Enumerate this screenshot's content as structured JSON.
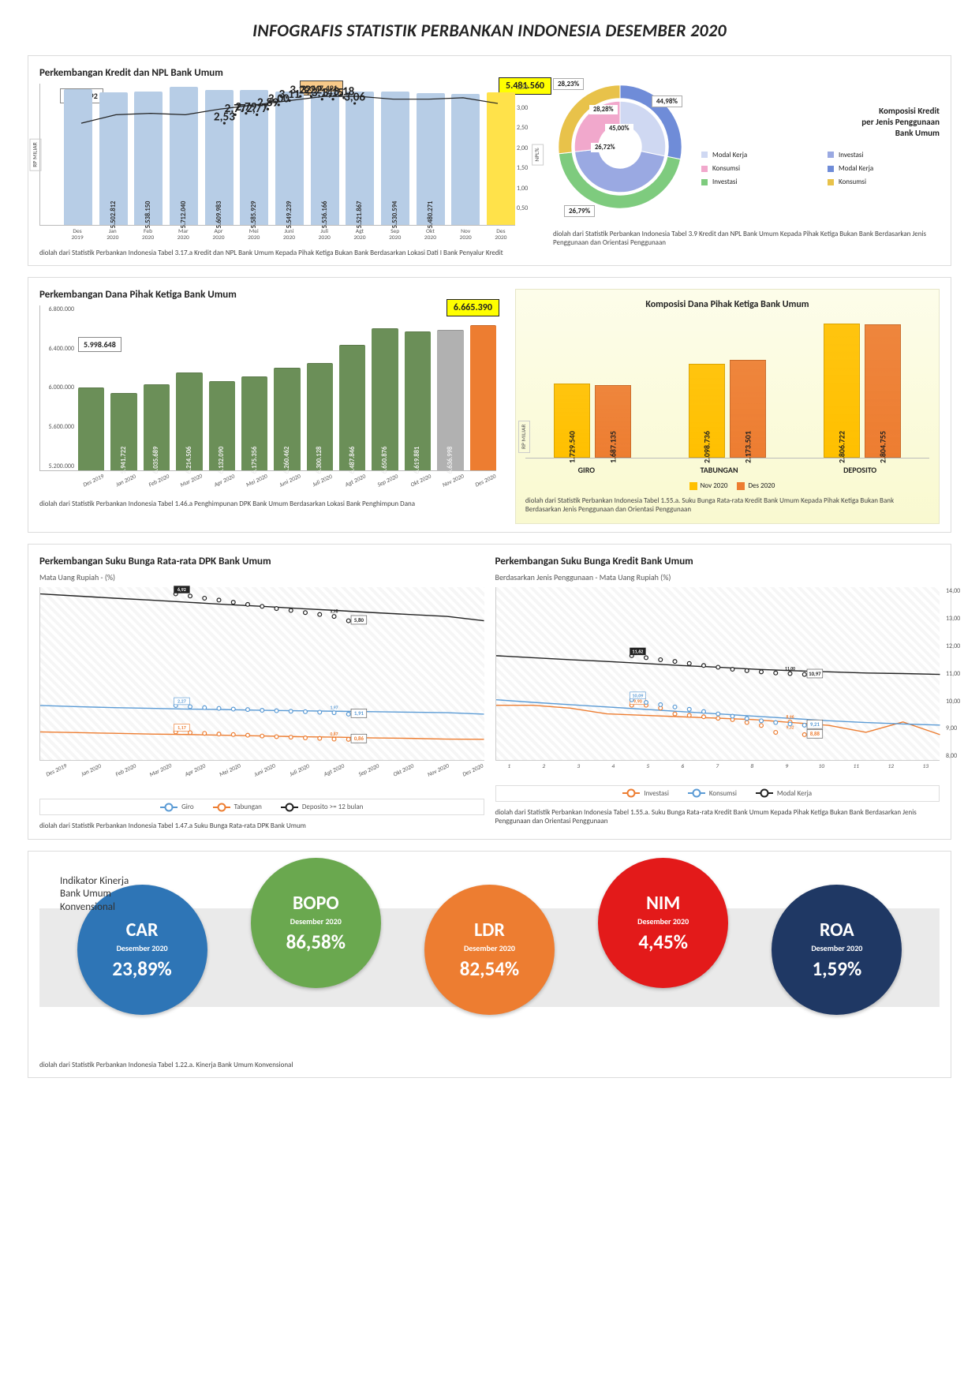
{
  "page_title": "INFOGRAFIS STATISTIK PERBANKAN INDONESIA DESEMBER 2020",
  "credit_npl": {
    "title": "Perkembangan Kredit dan NPL Bank Umum",
    "footnote": "diolah dari Statistik Perbankan Indonesia Tabel 3.17.a Kredit dan NPL Bank Umum Kepada Pihak Ketiga Bukan Bank Berdasarkan Lokasi Dati I Bank Penyalur Kredit",
    "y_unit_left": "RP MILIAR",
    "y_unit_right": "NPL%",
    "first_box": "5.616.992",
    "last_box": "5.481.560",
    "peak_box": "5.447.491",
    "bars": {
      "labels": [
        "Des 2019",
        "Jan 2020",
        "Feb 2020",
        "Mar 2020",
        "Apr 2020",
        "Mei 2020",
        "Juni 2020",
        "Juli 2020",
        "Agt 2020",
        "Sep 2020",
        "Okt 2020",
        "Nov 2020",
        "Des 2020"
      ],
      "values": [
        "",
        "5.502.812",
        "5.538.150",
        "5.712.040",
        "5.609.983",
        "5.585.929",
        "5.549.239",
        "5.536.166",
        "5.521.867",
        "5.530.594",
        "5.480.271",
        "",
        ""
      ],
      "heights_pct": [
        96,
        94,
        94.5,
        97.5,
        95.7,
        95.3,
        94.7,
        94.5,
        94.3,
        94.4,
        93.5,
        93,
        93.6
      ],
      "colors": [
        "#b7cde6",
        "#b7cde6",
        "#b7cde6",
        "#b7cde6",
        "#b7cde6",
        "#b7cde6",
        "#b7cde6",
        "#b7cde6",
        "#b7cde6",
        "#b7cde6",
        "#b7cde6",
        "#b7cde6",
        "#ffe24a"
      ]
    },
    "line_points": [
      "2,53",
      "2,77",
      "2,79",
      "2,77",
      "2,89",
      "3,00",
      "3,11",
      "3,22",
      "3,22",
      "3,14",
      "3,15",
      "3,18",
      "3,06"
    ],
    "line_heights_pct": [
      28,
      22,
      21,
      22,
      18,
      15,
      12,
      9,
      9,
      11,
      11,
      10,
      14
    ],
    "right_ticks": [
      "",
      "0,50",
      "1,00",
      "1,50",
      "2,00",
      "2,50",
      "3,00",
      "3,50"
    ]
  },
  "credit_comp": {
    "title": "Komposisi Kredit\nper Jenis Penggunaan\nBank Umum",
    "footnote": "diolah dari Statistik Perbankan Indonesia Tabel 3.9 Kredit dan NPL Bank Umum Kepada Pihak Ketiga Bukan Bank Berdasarkan Jenis Penggunaan dan Orientasi Penggunaan",
    "inner": [
      {
        "label": "28,28%",
        "color": "#cfd8f2"
      },
      {
        "label": "45,00%",
        "color": "#9aa9e2"
      },
      {
        "label": "26,72%",
        "color": "#f1a8cc"
      }
    ],
    "outer": [
      {
        "label": "28,23%",
        "color": "#6f8cd8"
      },
      {
        "label": "44,98%",
        "color": "#7ecb7e"
      },
      {
        "label": "26,79%",
        "color": "#e8c24a"
      }
    ],
    "legend": [
      "Modal Kerja",
      "Investasi",
      "Konsumsi",
      "Modal Kerja",
      "Investasi",
      "Konsumsi"
    ]
  },
  "dpk": {
    "title": "Perkembangan Dana Pihak Ketiga Bank Umum",
    "footnote": "diolah dari Statistik Perbankan Indonesia Tabel 1.46.a Penghimpunan DPK Bank Umum Berdasarkan Lokasi Bank Penghimpun Dana",
    "first_box": "5.998.648",
    "last_box": "6.665.390",
    "y_ticks": [
      "5.200.000",
      "5.600.000",
      "6.000.000",
      "6.400.000",
      "6.800.000"
    ],
    "bars": {
      "labels": [
        "Des 2019",
        "Jan 2020",
        "Feb 2020",
        "Mar 2020",
        "Apr 2020",
        "Mei 2020",
        "Juni 2020",
        "Juli 2020",
        "Agt 2020",
        "Sep 2020",
        "Okt 2020",
        "Nov 2020",
        "Des 2020"
      ],
      "values": [
        "",
        "5.941.722",
        "6.035.689",
        "6.214.506",
        "6.132.090",
        "6.175.356",
        "6.260.462",
        "6.300.128",
        "6.487.846",
        "6.650.876",
        "6.619.881",
        "6.636.998",
        ""
      ],
      "heights_pct": [
        50,
        47,
        52,
        59,
        54,
        57,
        62,
        65,
        76,
        86,
        84,
        85,
        88
      ],
      "colors": [
        "#6b8f58",
        "#6b8f58",
        "#6b8f58",
        "#6b8f58",
        "#6b8f58",
        "#6b8f58",
        "#6b8f58",
        "#6b8f58",
        "#6b8f58",
        "#6b8f58",
        "#6b8f58",
        "#b1b1b1",
        "#ed7d31"
      ]
    }
  },
  "dpk_comp": {
    "title": "Komposisi Dana Pihak Ketiga Bank Umum",
    "footnote": "diolah dari Statistik Perbankan Indonesia Tabel 1.55.a. Suku Bunga Rata-rata Kredit Bank Umum Kepada Pihak Ketiga Bukan Bank Berdasarkan Jenis Penggunaan dan Orientasi Penggunaan",
    "y_unit": "RP MILIAR",
    "categories": [
      "GIRO",
      "TABUNGAN",
      "DEPOSITO"
    ],
    "series": [
      {
        "name": "Nov 2020",
        "color": "#ffc000",
        "values": [
          "1.729.540",
          "2.098.736",
          "2.806.722"
        ],
        "heights": [
          55,
          70,
          100
        ]
      },
      {
        "name": "Des 2020",
        "color": "#ed7d31",
        "values": [
          "1.687.135",
          "2.173.501",
          "2.804.755"
        ],
        "heights": [
          54,
          73,
          99.5
        ]
      }
    ]
  },
  "dpk_rate": {
    "title": "Perkembangan Suku Bunga Rata-rata DPK Bank Umum",
    "sub": "Mata Uang Rupiah - (%)",
    "footnote": "diolah dari Statistik Perbankan Indonesia Tabel 1.47.a Suku Bunga Rata-rata DPK Bank Umum",
    "x_labels": [
      "Des 2019",
      "Jan 2020",
      "Feb 2020",
      "Mar 2020",
      "Apr 2020",
      "Mei 2020",
      "Juni 2020",
      "Juli 2020",
      "Agt 2020",
      "Sep 2020",
      "Okt 2020",
      "Nov 2020",
      "Des 2020"
    ],
    "series": [
      {
        "name": "Giro",
        "color": "#5b9bd5",
        "first": "2,27",
        "prev": "1,97",
        "last": "1,91",
        "y": [
          2.27,
          2.22,
          2.18,
          2.15,
          2.12,
          2.1,
          2.07,
          2.05,
          2.03,
          2.01,
          1.99,
          1.97,
          1.91
        ]
      },
      {
        "name": "Tabungan",
        "color": "#ed7d31",
        "first": "1,17",
        "prev": "0,87",
        "last": "0,86",
        "y": [
          1.17,
          1.14,
          1.11,
          1.08,
          1.06,
          1.03,
          1.0,
          0.97,
          0.95,
          0.92,
          0.9,
          0.87,
          0.86
        ]
      },
      {
        "name": "Deposito >= 12 bulan",
        "color": "#222222",
        "first": "6,92",
        "prev": "5,98",
        "last": "5,80",
        "y": [
          6.92,
          6.83,
          6.74,
          6.66,
          6.57,
          6.48,
          6.4,
          6.31,
          6.23,
          6.14,
          6.06,
          5.98,
          5.8
        ]
      }
    ],
    "y_max": 7.2,
    "y_min": 0
  },
  "credit_rate": {
    "title": "Perkembangan Suku Bunga Kredit Bank Umum",
    "sub": "Berdasarkan Jenis Penggunaan - Mata Uang Rupiah (%)",
    "footnote": "diolah dari Statistik Perbankan Indonesia Tabel 1.55.a. Suku Bunga Rata-rata Kredit Bank Umum Kepada Pihak Ketiga Bukan Bank Berdasarkan Jenis Penggunaan dan Orientasi Penggunaan",
    "x_labels": [
      "1",
      "2",
      "3",
      "4",
      "5",
      "6",
      "7",
      "8",
      "9",
      "10",
      "11",
      "12",
      "13"
    ],
    "y_ticks": [
      "8,00",
      "9,00",
      "10,00",
      "11,00",
      "12,00",
      "13,00",
      "14,00"
    ],
    "series": [
      {
        "name": "Investasi",
        "color": "#ed7d31",
        "first": "9,90",
        "prev": "8,96",
        "special": "9,32",
        "last": "8,88",
        "y": [
          9.9,
          9.9,
          9.8,
          9.6,
          9.55,
          9.5,
          9.45,
          9.4,
          9.3,
          9.2,
          8.96,
          9.32,
          8.88
        ]
      },
      {
        "name": "Konsumsi",
        "color": "#5b9bd5",
        "first": "10,09",
        "prev": "",
        "last": "9,21",
        "y": [
          10.09,
          10.0,
          9.92,
          9.84,
          9.76,
          9.68,
          9.6,
          9.52,
          9.44,
          9.36,
          9.3,
          9.25,
          9.21
        ]
      },
      {
        "name": "Modal Kerja",
        "color": "#222222",
        "first": "11,62",
        "prev": "11,00",
        "last": "10,97",
        "y": [
          11.62,
          11.55,
          11.48,
          11.42,
          11.35,
          11.28,
          11.22,
          11.15,
          11.1,
          11.06,
          11.02,
          11.0,
          10.97
        ]
      }
    ],
    "y_max": 14,
    "y_min": 8
  },
  "indicators": {
    "title": "Indikator Kinerja\nBank Umum\nKonvensional",
    "footnote": "diolah dari Statistik Perbankan Indonesia Tabel 1.22.a. Kinerja Bank Umum Konvensional",
    "period": "Desember 2020",
    "list": [
      {
        "name": "CAR",
        "value": "23,89%",
        "color": "#2e75b6",
        "pos": "down"
      },
      {
        "name": "BOPO",
        "value": "86,58%",
        "color": "#6aa84f",
        "pos": "up"
      },
      {
        "name": "LDR",
        "value": "82,54%",
        "color": "#ed7d31",
        "pos": "down"
      },
      {
        "name": "NIM",
        "value": "4,45%",
        "color": "#e31a1a",
        "pos": "up"
      },
      {
        "name": "ROA",
        "value": "1,59%",
        "color": "#1f3864",
        "pos": "down"
      }
    ]
  }
}
